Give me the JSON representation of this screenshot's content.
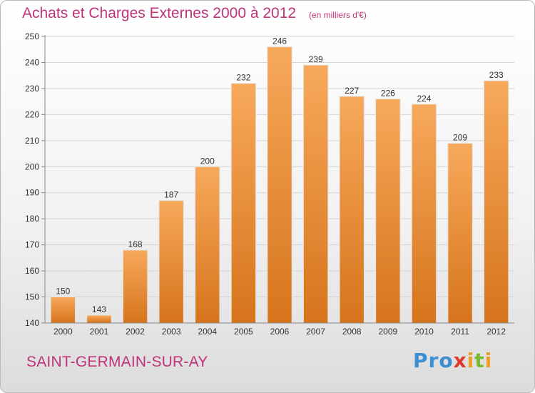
{
  "title": "Achats et Charges Externes 2000 à 2012",
  "unit": "(en milliers d'€)",
  "commune": "SAINT-GERMAIN-SUR-AY",
  "logo": {
    "letters": [
      "P",
      "r",
      "o",
      "x",
      "i",
      "t",
      "i"
    ],
    "colors": [
      "#3d8fd1",
      "#3d8fd1",
      "#3d8fd1",
      "#e03a2f",
      "#f0a020",
      "#7cb82f",
      "#f0a020"
    ]
  },
  "colors": {
    "bar_top": "#f7a95b",
    "bar_bottom": "#d6741c",
    "title": "#c0337a",
    "grid": "#d4d4d4"
  },
  "chart_data": {
    "type": "bar",
    "title": "Achats et Charges Externes 2000 à 2012",
    "subtitle": "(en milliers d'€)",
    "categories": [
      "2000",
      "2001",
      "2002",
      "2003",
      "2004",
      "2005",
      "2006",
      "2007",
      "2008",
      "2009",
      "2010",
      "2011",
      "2012"
    ],
    "values": [
      150,
      143,
      168,
      187,
      200,
      232,
      246,
      239,
      227,
      226,
      224,
      209,
      233
    ],
    "ylim": [
      140,
      250
    ],
    "yticks": [
      140,
      150,
      160,
      170,
      180,
      190,
      200,
      210,
      220,
      230,
      240,
      250
    ],
    "grid": true,
    "xlabel": "",
    "ylabel": ""
  }
}
